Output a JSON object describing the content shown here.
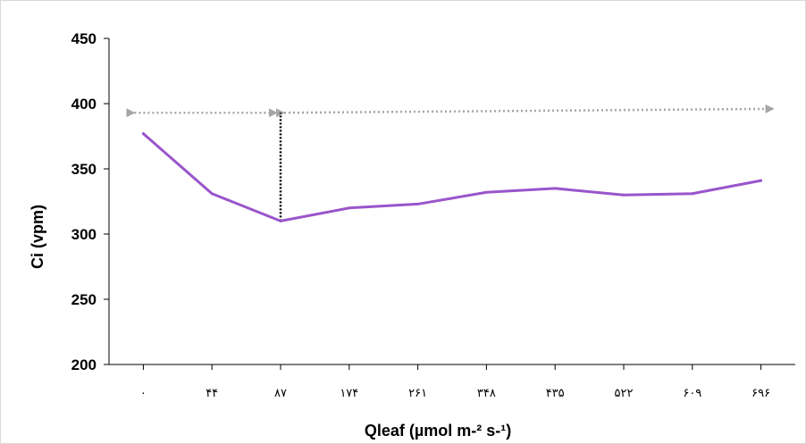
{
  "chart_data": {
    "type": "line",
    "categories": [
      "۰",
      "۴۴",
      "۸۷",
      "۱۷۴",
      "۲۶۱",
      "۳۴۸",
      "۴۳۵",
      "۵۲۲",
      "۶۰۹",
      "۶۹۶"
    ],
    "values": [
      377,
      331,
      310,
      320,
      323,
      332,
      335,
      330,
      331,
      341
    ],
    "title": "",
    "xlabel": "Qleaf (µmol m-² s-¹)",
    "ylabel": "Ci (vpm)",
    "ylim": [
      200,
      450
    ],
    "yticks": [
      "200",
      "250",
      "300",
      "350",
      "400",
      "450"
    ],
    "grid": false,
    "line_color": "#9955cc",
    "annotation_arrow_color": "#a6a6a6",
    "annotations": {
      "left_arrow": {
        "from_category": "۰",
        "to_category": "۸۷",
        "y": 393
      },
      "right_arrow": {
        "from_category": "۸۷",
        "to_category": "۶۹۶",
        "y_start": 393,
        "y_end": 396
      },
      "vertical_marker": {
        "category": "۸۷",
        "y_from": 310,
        "y_to": 393
      }
    }
  }
}
